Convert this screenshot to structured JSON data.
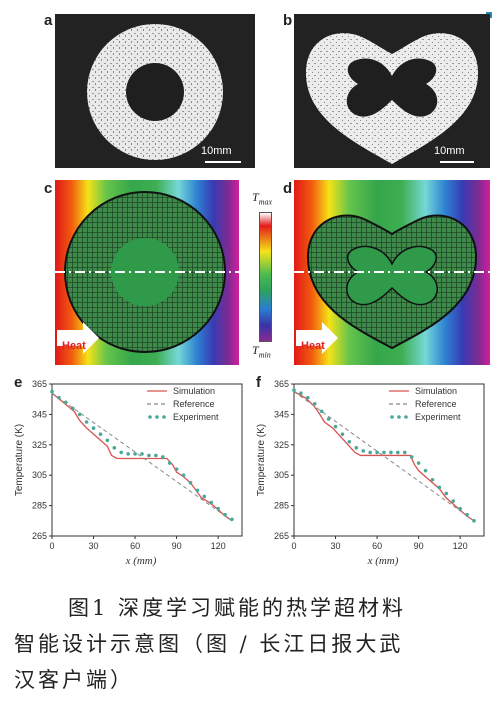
{
  "panels": {
    "a": {
      "letter": "a",
      "scale": "10mm"
    },
    "b": {
      "letter": "b",
      "scale": "10mm"
    },
    "c": {
      "letter": "c",
      "heat": "Heat"
    },
    "d": {
      "letter": "d",
      "heat": "Heat"
    },
    "colorbar": {
      "max_base": "T",
      "max_sub": "max",
      "min_base": "T",
      "min_sub": "min"
    }
  },
  "chart_data": [
    {
      "panel": "e",
      "type": "line",
      "xlabel": "x (mm)",
      "ylabel": "Temperature (K)",
      "xlim": [
        0,
        130
      ],
      "ylim": [
        265,
        365
      ],
      "xticks": [
        0,
        30,
        60,
        90,
        120
      ],
      "yticks": [
        265,
        285,
        305,
        325,
        345,
        365
      ],
      "legend_position": "top-right",
      "series": [
        {
          "name": "Simulation",
          "style": "solid",
          "color": "#d9534f",
          "x": [
            0,
            8,
            16,
            20,
            25,
            30,
            35,
            40,
            43,
            47,
            55,
            65,
            75,
            83,
            87,
            90,
            95,
            100,
            104,
            108,
            112,
            118,
            124,
            130
          ],
          "y": [
            359,
            353,
            347,
            341,
            336,
            332,
            328,
            324,
            318,
            316,
            316,
            316,
            316,
            316,
            312,
            307,
            304,
            300,
            295,
            290,
            288,
            284,
            279,
            275
          ]
        },
        {
          "name": "Reference",
          "style": "dashed",
          "color": "#888888",
          "x": [
            0,
            130
          ],
          "y": [
            359,
            275
          ]
        },
        {
          "name": "Experiment",
          "style": "markers",
          "color": "#4aa79a",
          "x": [
            0,
            5,
            10,
            15,
            20,
            25,
            30,
            35,
            40,
            45,
            50,
            55,
            60,
            65,
            70,
            75,
            80,
            85,
            90,
            95,
            100,
            105,
            110,
            115,
            120,
            125,
            130
          ],
          "y": [
            360,
            356,
            353,
            349,
            345,
            340,
            336,
            332,
            328,
            323,
            320,
            319,
            319,
            319,
            318,
            318,
            317,
            313,
            309,
            305,
            300,
            295,
            291,
            287,
            283,
            279,
            276
          ]
        }
      ]
    },
    {
      "panel": "f",
      "type": "line",
      "xlabel": "x (mm)",
      "ylabel": "Temperature (K)",
      "xlim": [
        0,
        130
      ],
      "ylim": [
        265,
        365
      ],
      "xticks": [
        0,
        30,
        60,
        90,
        120
      ],
      "yticks": [
        265,
        285,
        305,
        325,
        345,
        365
      ],
      "legend_position": "top-right",
      "series": [
        {
          "name": "Simulation",
          "style": "solid",
          "color": "#d9534f",
          "x": [
            0,
            8,
            14,
            18,
            22,
            28,
            32,
            36,
            40,
            44,
            48,
            55,
            65,
            75,
            84,
            87,
            90,
            95,
            100,
            105,
            110,
            115,
            120,
            125,
            130
          ],
          "y": [
            360,
            356,
            351,
            346,
            340,
            336,
            332,
            328,
            324,
            320,
            318,
            318,
            318,
            318,
            318,
            312,
            308,
            304,
            300,
            296,
            290,
            286,
            282,
            278,
            275
          ]
        },
        {
          "name": "Reference",
          "style": "dashed",
          "color": "#888888",
          "x": [
            0,
            130
          ],
          "y": [
            360,
            275
          ]
        },
        {
          "name": "Experiment",
          "style": "markers",
          "color": "#4aa79a",
          "x": [
            0,
            5,
            10,
            15,
            20,
            25,
            30,
            35,
            40,
            45,
            50,
            55,
            60,
            65,
            70,
            75,
            80,
            85,
            90,
            95,
            100,
            105,
            110,
            115,
            120,
            125,
            130
          ],
          "y": [
            361,
            359,
            356,
            352,
            347,
            342,
            337,
            332,
            327,
            323,
            321,
            320,
            320,
            320,
            320,
            320,
            320,
            317,
            313,
            308,
            302,
            297,
            293,
            288,
            283,
            279,
            275
          ]
        }
      ]
    }
  ],
  "caption": {
    "line1": "图1   深度学习赋能的热学超材料",
    "line2": "智能设计示意图（图 / 长江日报大武",
    "line3": "汉客户端）"
  },
  "colors": {
    "simulation": "#d9534f",
    "reference": "#888888",
    "experiment": "#4aa79a",
    "accent": "#2b87b8"
  }
}
